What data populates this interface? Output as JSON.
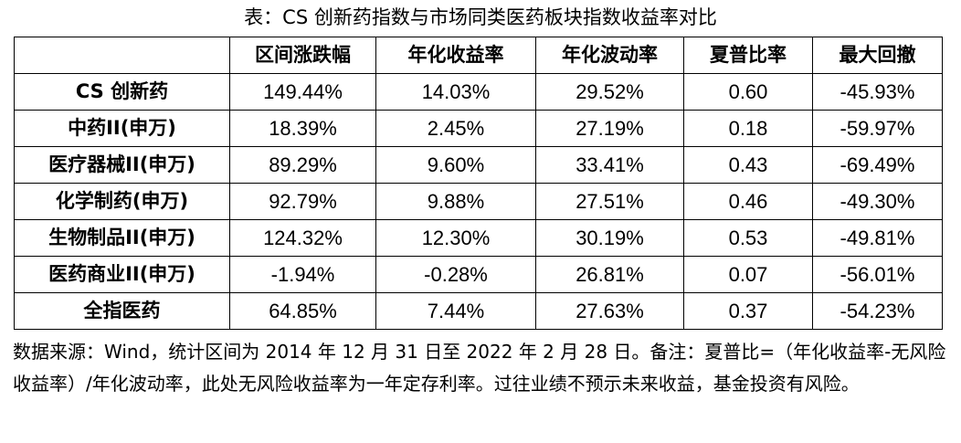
{
  "caption": "表：CS 创新药指数与市场同类医药板块指数收益率对比",
  "table": {
    "headers": [
      "",
      "区间涨跌幅",
      "年化收益率",
      "年化波动率",
      "夏普比率",
      "最大回撤"
    ],
    "rows": [
      [
        "CS 创新药",
        "149.44%",
        "14.03%",
        "29.52%",
        "0.60",
        "-45.93%"
      ],
      [
        "中药II(申万)",
        "18.39%",
        "2.45%",
        "27.19%",
        "0.18",
        "-59.97%"
      ],
      [
        "医疗器械II(申万)",
        "89.29%",
        "9.60%",
        "33.41%",
        "0.43",
        "-69.49%"
      ],
      [
        "化学制药(申万)",
        "92.79%",
        "9.88%",
        "27.51%",
        "0.46",
        "-49.30%"
      ],
      [
        "生物制品II(申万)",
        "124.32%",
        "12.30%",
        "30.19%",
        "0.53",
        "-49.81%"
      ],
      [
        "医药商业II(申万)",
        "-1.94%",
        "-0.28%",
        "26.81%",
        "0.07",
        "-56.01%"
      ],
      [
        "全指医药",
        "64.85%",
        "7.44%",
        "27.63%",
        "0.37",
        "-54.23%"
      ]
    ]
  },
  "footnote": "数据来源：Wind，统计区间为 2014 年 12 月 31 日至 2022 年 2 月 28 日。备注：夏普比=（年化收益率-无风险收益率）/年化波动率，此处无风险收益率为一年定存利率。过往业绩不预示未来收益，基金投资有风险。"
}
